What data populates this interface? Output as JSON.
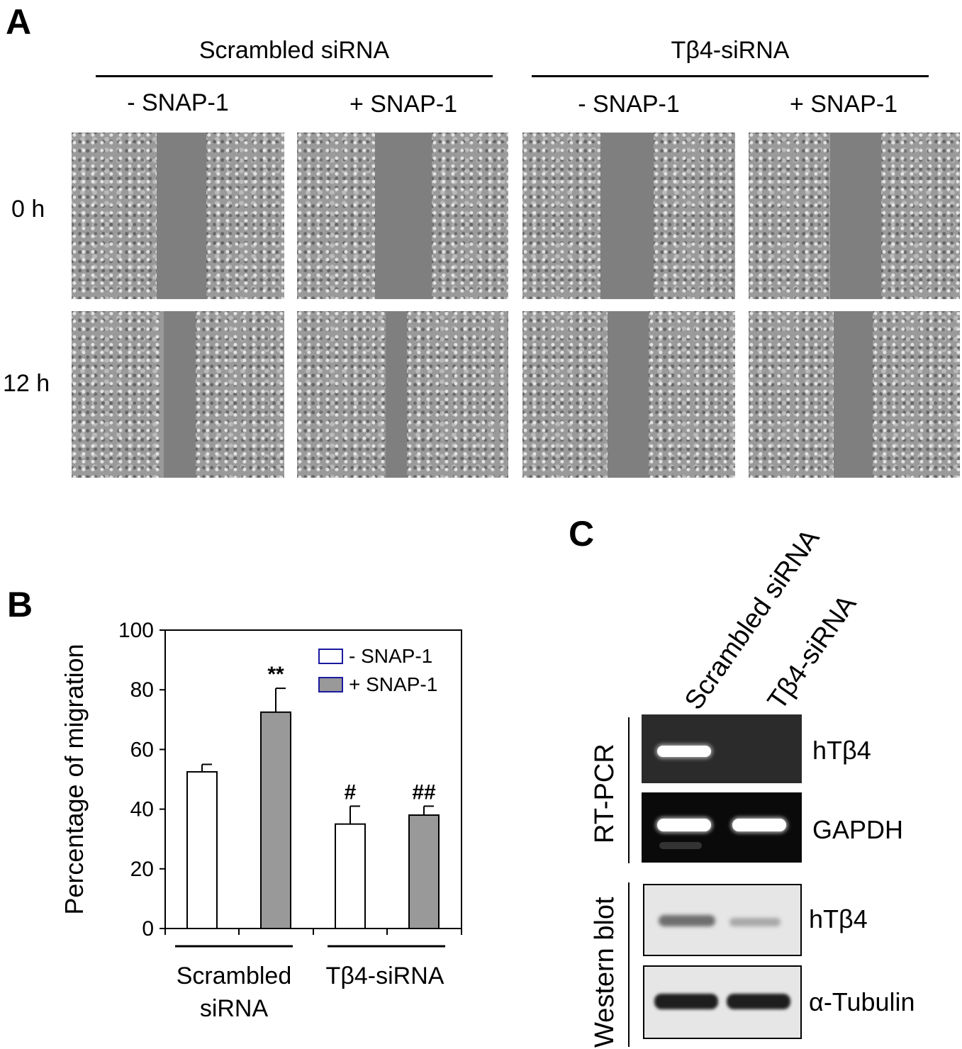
{
  "panel_a": {
    "letter": "A",
    "group_titles": [
      "Scrambled siRNA",
      "Tβ4-siRNA"
    ],
    "column_labels": [
      "- SNAP-1",
      "+ SNAP-1",
      "- SNAP-1",
      "+ SNAP-1"
    ],
    "row_labels": [
      "0 h",
      "12 h"
    ]
  },
  "panel_b": {
    "letter": "B"
  },
  "panel_c": {
    "letter": "C",
    "lane_labels": [
      "Scrambled siRNA",
      "Tβ4-siRNA"
    ],
    "method_labels": [
      "RT-PCR",
      "Western blot"
    ],
    "band_labels": [
      "hTβ4",
      "GAPDH",
      "hTβ4",
      "α-Tubulin"
    ]
  },
  "chart_data": {
    "type": "bar",
    "categories": [
      "Scrambled siRNA",
      "Tβ4-siRNA"
    ],
    "category_labels": [
      [
        "Scrambled",
        "siRNA"
      ],
      [
        "Tβ4-siRNA"
      ]
    ],
    "series": [
      {
        "name": "- SNAP-1",
        "values": [
          52.5,
          35
        ],
        "errors": [
          2.5,
          6
        ],
        "annotations": [
          "",
          "#"
        ],
        "color": "#ffffff"
      },
      {
        "name": "+ SNAP-1",
        "values": [
          72.5,
          38
        ],
        "errors": [
          8,
          3
        ],
        "annotations": [
          "**",
          "##"
        ],
        "color": "#999999"
      }
    ],
    "ylabel": "Percentage of migration",
    "xlabel": "",
    "ylim": [
      0,
      100
    ],
    "yticks": [
      0,
      20,
      40,
      60,
      80,
      100
    ],
    "legend_position": "top-right",
    "legend_border_color": "#1a1aa0"
  }
}
